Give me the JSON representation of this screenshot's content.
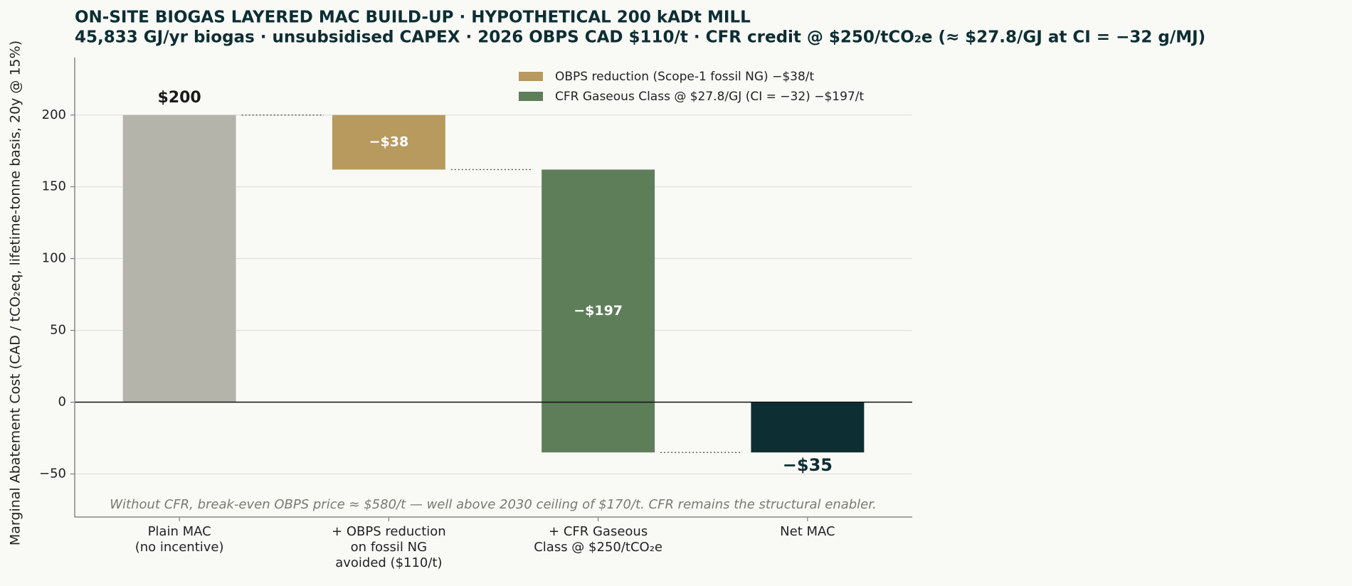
{
  "chart_data": {
    "type": "waterfall",
    "title": "ON-SITE BIOGAS LAYERED MAC BUILD-UP  ·  HYPOTHETICAL 200 kADt MILL",
    "subtitle": "45,833 GJ/yr biogas  ·  unsubsidised CAPEX  ·  2026 OBPS CAD $110/t  ·  CFR credit @ $250/tCO₂e (≈ $27.8/GJ at CI = −32 g/MJ)",
    "y_label": "Marginal Abatement Cost (CAD / tCO₂eq, lifetime-tonne basis, 20y @ 15%)",
    "categories": [
      [
        "Plain MAC",
        "(no incentive)"
      ],
      [
        "+ OBPS reduction",
        "on fossil NG",
        "avoided ($110/t)"
      ],
      [
        "+ CFR Gaseous",
        "Class @ $250/tCO₂e"
      ],
      [
        "Net MAC"
      ]
    ],
    "measures": [
      "absolute",
      "relative",
      "relative",
      "total"
    ],
    "values": [
      200,
      -38,
      -197,
      -35
    ],
    "value_labels": [
      "$200",
      "−$38",
      "−$197",
      "−$35"
    ],
    "colors": [
      "#b5b4aa",
      "#b89a5e",
      "#5e7e5a",
      "#0d2e33"
    ],
    "legend": [
      {
        "name": "OBPS reduction (Scope-1 fossil NG)  −$38/t",
        "color": "#b89a5e"
      },
      {
        "name": "CFR Gaseous Class @ $27.8/GJ (CI = −32)  −$197/t",
        "color": "#5e7e5a"
      }
    ],
    "annotation": "Without CFR, break-even OBPS price ≈ $580/t — well above 2030 ceiling of $170/t. CFR remains the structural enabler.",
    "ylim": [
      -80,
      240
    ],
    "yticks": [
      {
        "value": -50,
        "label": "−50"
      },
      0,
      50,
      100,
      150,
      200
    ],
    "grid": true
  }
}
